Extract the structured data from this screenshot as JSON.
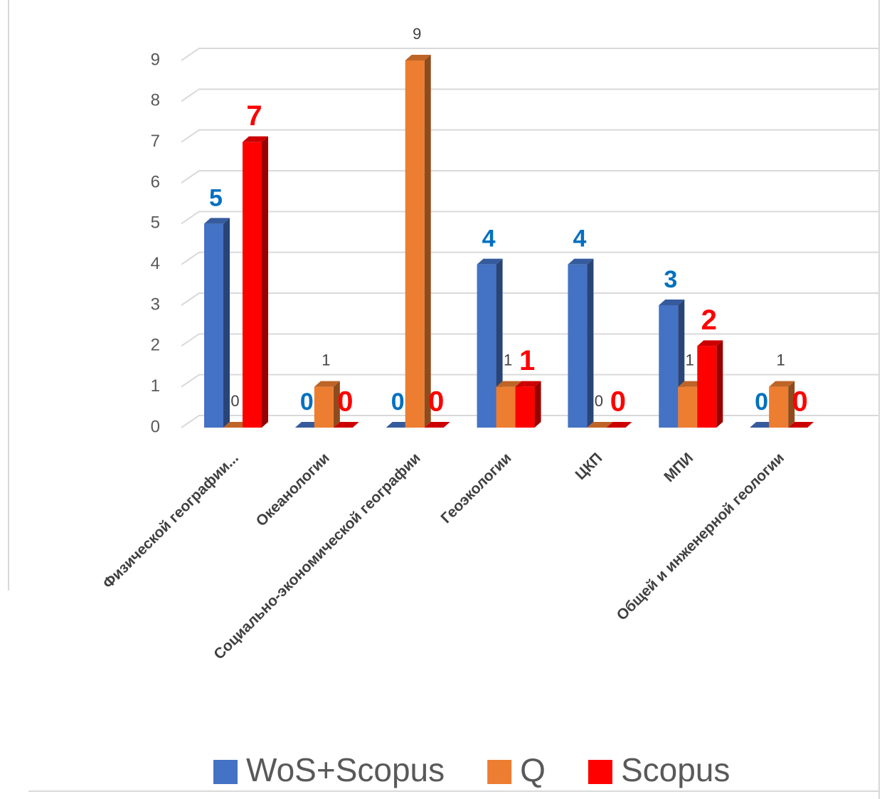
{
  "chart_data": {
    "type": "bar3d",
    "categories": [
      "Физической географии...",
      "Океанологии",
      "Социально-экономической географии",
      "Геоэкологии",
      "ЦКП",
      "МПИ",
      "Общей и инженерной геологии"
    ],
    "series": [
      {
        "name": "WoS+Scopus",
        "color": "#4472c4",
        "label_color": "#0070c0",
        "values": [
          5,
          0,
          0,
          4,
          4,
          3,
          0
        ]
      },
      {
        "name": "Q",
        "color": "#ed7d31",
        "label_color": "#404040",
        "values": [
          0,
          1,
          9,
          1,
          0,
          1,
          1
        ]
      },
      {
        "name": "Scopus",
        "color": "#ff0000",
        "label_color": "#ff0000",
        "values": [
          7,
          0,
          0,
          1,
          0,
          2,
          0
        ]
      }
    ],
    "ylim": [
      0,
      9
    ],
    "yticks": [
      0,
      1,
      2,
      3,
      4,
      5,
      6,
      7,
      8,
      9
    ],
    "grid": true,
    "legend": "bottom"
  }
}
